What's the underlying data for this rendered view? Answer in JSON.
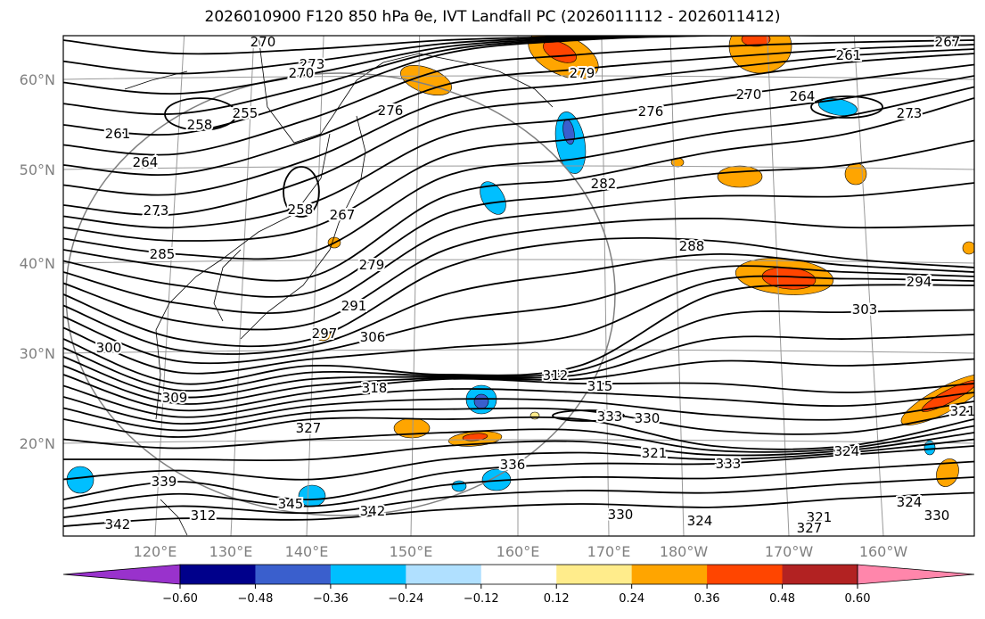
{
  "title": "2026010900 F120 850 hPa θe, IVT Landfall PC (2026011112 - 2026011412)",
  "chart_data": {
    "type": "map-contour",
    "title": "2026010900 F120 850 hPa θe, IVT Landfall PC (2026011112 - 2026011412)",
    "lat_ticks": [
      "60°N",
      "50°N",
      "40°N",
      "30°N",
      "20°N"
    ],
    "lon_ticks": [
      "120°E",
      "130°E",
      "140°E",
      "150°E",
      "160°E",
      "170°E",
      "180°W",
      "170°W",
      "160°W"
    ],
    "contour_labels": [
      "270",
      "273",
      "270",
      "258",
      "255",
      "261",
      "264",
      "273",
      "258",
      "267",
      "276",
      "279",
      "276",
      "282",
      "270",
      "264",
      "261",
      "267",
      "273",
      "288",
      "294",
      "303",
      "285",
      "279",
      "291",
      "297",
      "306",
      "300",
      "309",
      "318",
      "312",
      "315",
      "327",
      "333",
      "330",
      "321",
      "333",
      "336",
      "324",
      "321",
      "339",
      "345",
      "342",
      "342",
      "312",
      "324",
      "330",
      "321",
      "327",
      "324",
      "330"
    ],
    "colorbar": {
      "ticks": [
        "−0.60",
        "−0.48",
        "−0.36",
        "−0.24",
        "−0.12",
        "0.12",
        "0.24",
        "0.36",
        "0.48",
        "0.60"
      ],
      "colors": [
        "#9932cc",
        "#00008b",
        "#3a5fcd",
        "#00bfff",
        "#b0e0ff",
        "#ffffff",
        "#ffec8b",
        "#ffa500",
        "#ff4500",
        "#b22222",
        "#ff86ab"
      ]
    }
  }
}
